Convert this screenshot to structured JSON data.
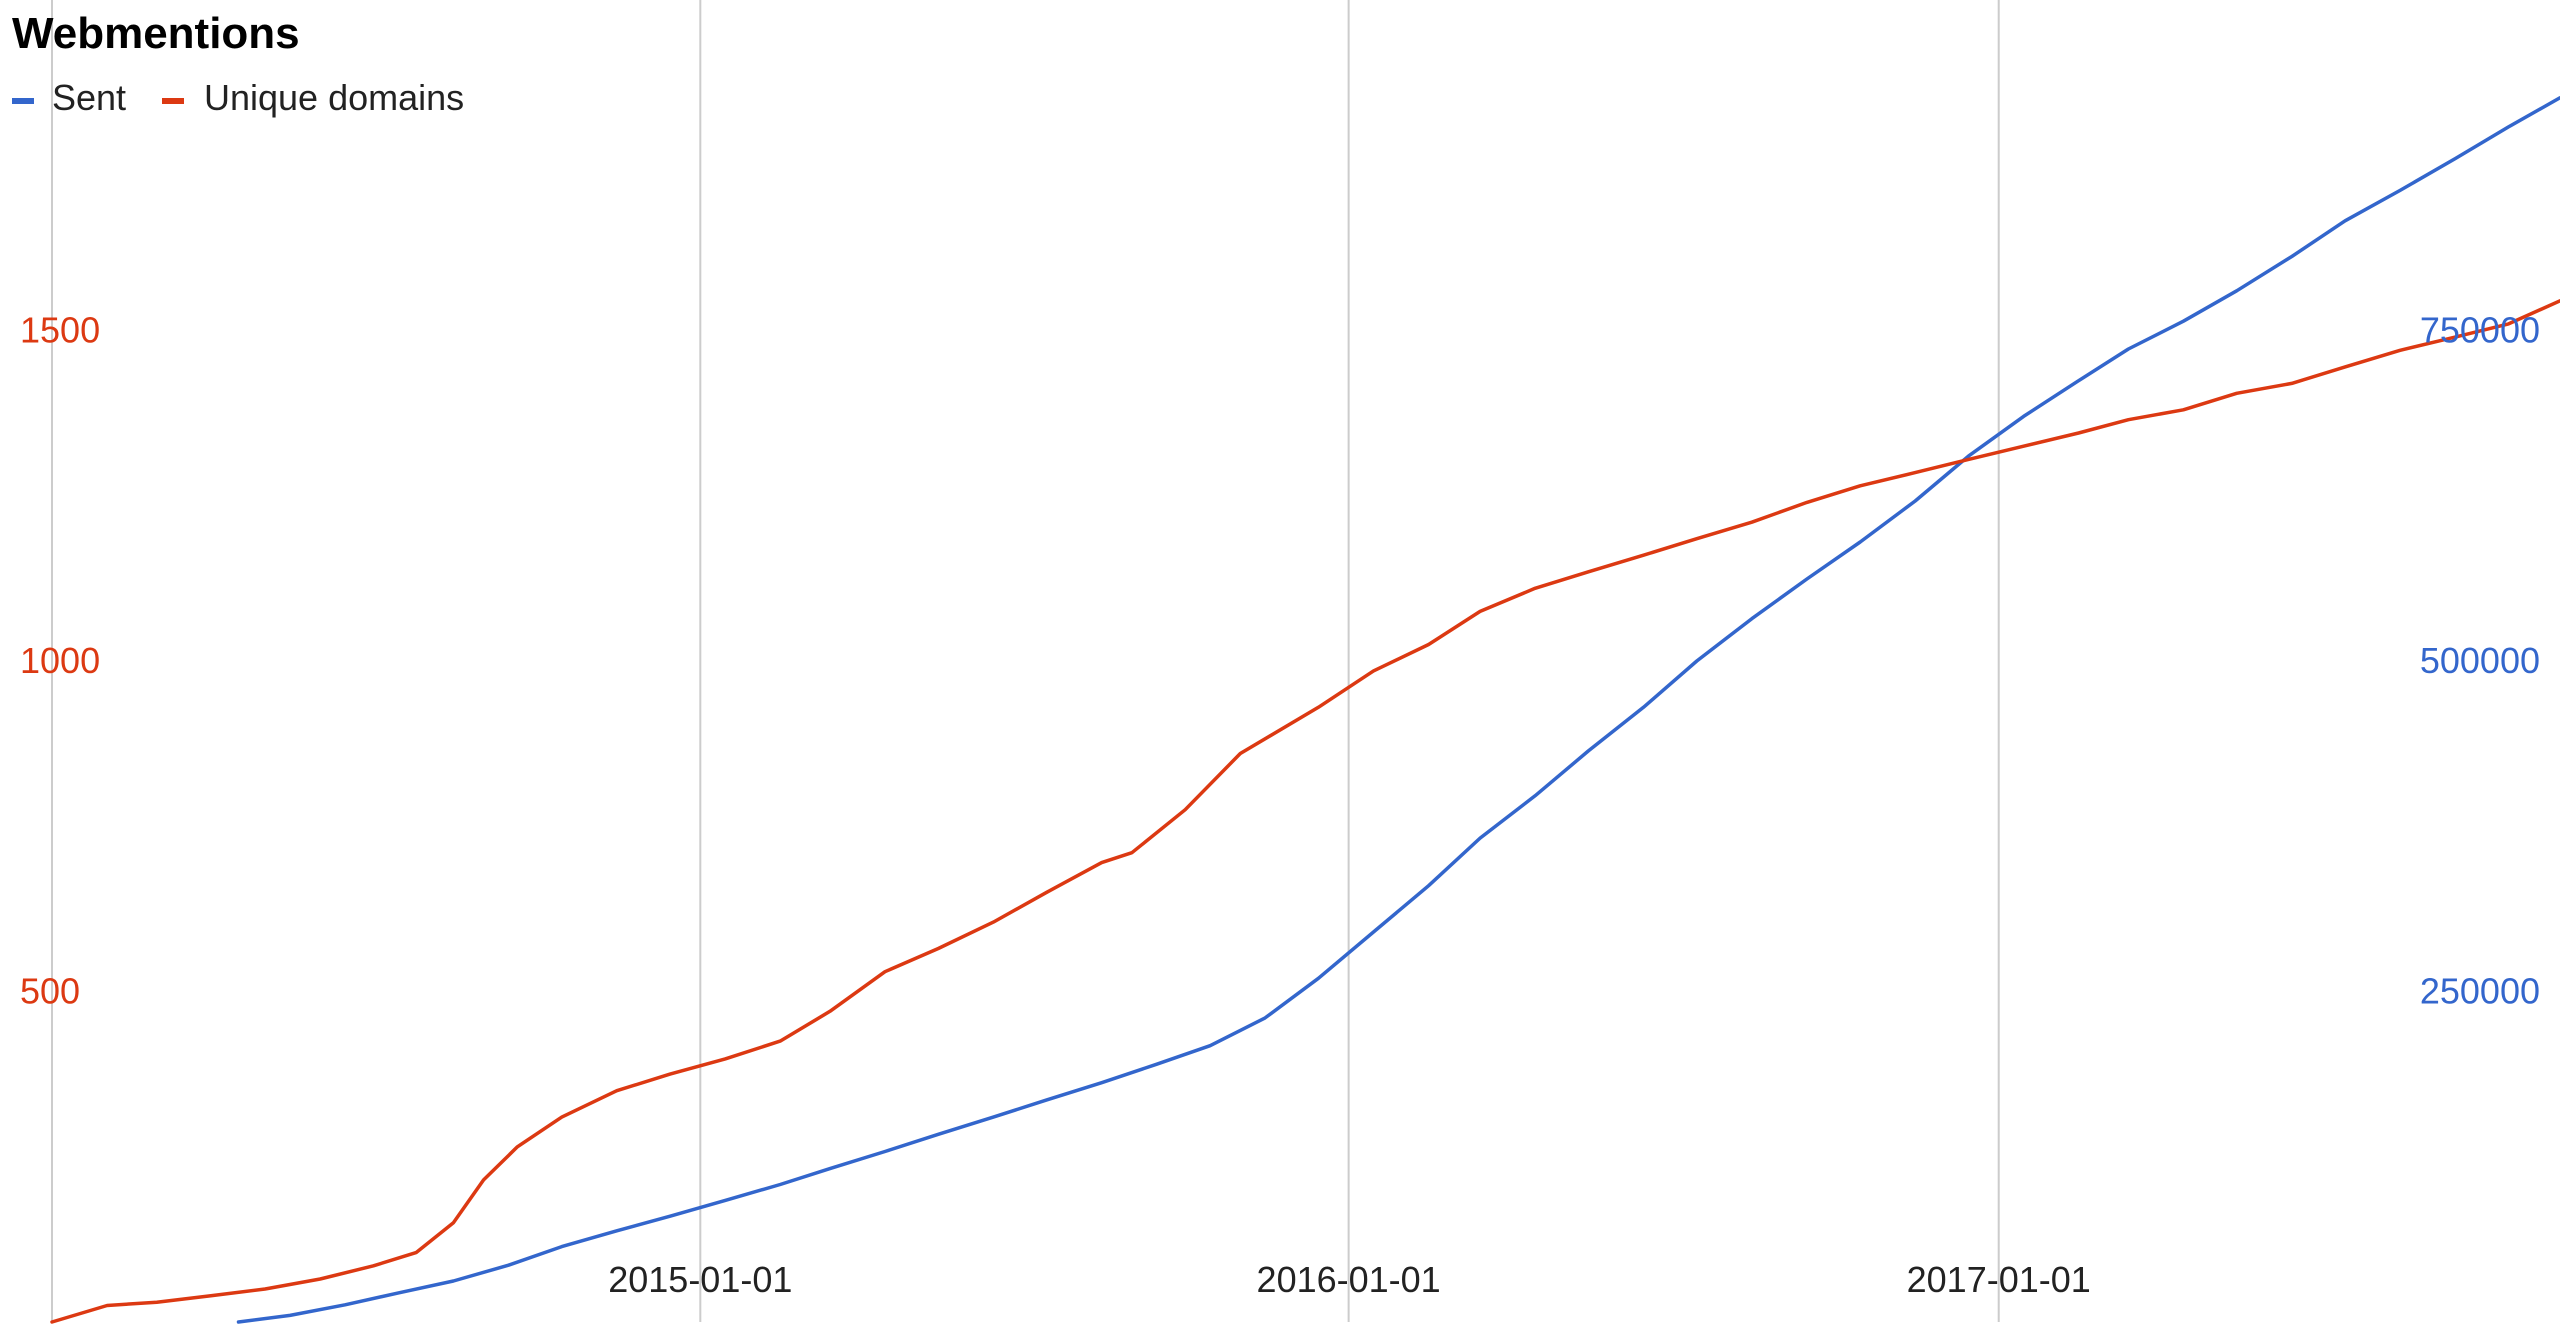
{
  "chart_data": {
    "type": "line",
    "title": "Webmentions",
    "legend": {
      "placement": "top-left"
    },
    "series": [
      {
        "name": "Sent",
        "axis": "right",
        "color": "#3366cc",
        "points": [
          [
            "2014-04-16",
            0
          ],
          [
            "2014-05-15",
            5000
          ],
          [
            "2014-06-15",
            13000
          ],
          [
            "2014-07-15",
            22000
          ],
          [
            "2014-08-15",
            31000
          ],
          [
            "2014-09-15",
            43000
          ],
          [
            "2014-10-15",
            57000
          ],
          [
            "2014-11-15",
            69000
          ],
          [
            "2014-12-15",
            80000
          ],
          [
            "2015-01-15",
            92000
          ],
          [
            "2015-02-15",
            104000
          ],
          [
            "2015-03-15",
            116000
          ],
          [
            "2015-04-15",
            129000
          ],
          [
            "2015-05-15",
            142000
          ],
          [
            "2015-06-15",
            155000
          ],
          [
            "2015-07-15",
            168000
          ],
          [
            "2015-08-15",
            181000
          ],
          [
            "2015-09-15",
            195000
          ],
          [
            "2015-10-15",
            209000
          ],
          [
            "2015-11-15",
            230000
          ],
          [
            "2015-12-15",
            260000
          ],
          [
            "2016-01-15",
            295000
          ],
          [
            "2016-02-15",
            330000
          ],
          [
            "2016-03-15",
            366000
          ],
          [
            "2016-04-15",
            398000
          ],
          [
            "2016-05-15",
            432000
          ],
          [
            "2016-06-15",
            465000
          ],
          [
            "2016-07-15",
            500000
          ],
          [
            "2016-08-15",
            532000
          ],
          [
            "2016-09-15",
            562000
          ],
          [
            "2016-10-15",
            590000
          ],
          [
            "2016-11-15",
            621000
          ],
          [
            "2016-12-15",
            655000
          ],
          [
            "2017-01-15",
            685000
          ],
          [
            "2017-02-15",
            712000
          ],
          [
            "2017-03-15",
            736000
          ],
          [
            "2017-04-15",
            757000
          ],
          [
            "2017-05-15",
            780000
          ],
          [
            "2017-06-15",
            806000
          ],
          [
            "2017-07-15",
            833000
          ],
          [
            "2017-08-15",
            856000
          ],
          [
            "2017-09-15",
            880000
          ],
          [
            "2017-10-15",
            904000
          ],
          [
            "2017-11-13",
            926000
          ]
        ]
      },
      {
        "name": "Unique domains",
        "axis": "left",
        "color": "#dc3912",
        "points": [
          [
            "2014-01-01",
            0
          ],
          [
            "2014-02-01",
            25
          ],
          [
            "2014-03-01",
            30
          ],
          [
            "2014-04-01",
            40
          ],
          [
            "2014-05-01",
            50
          ],
          [
            "2014-06-01",
            65
          ],
          [
            "2014-07-01",
            85
          ],
          [
            "2014-07-25",
            105
          ],
          [
            "2014-08-15",
            150
          ],
          [
            "2014-09-01",
            215
          ],
          [
            "2014-09-20",
            265
          ],
          [
            "2014-10-15",
            310
          ],
          [
            "2014-11-15",
            350
          ],
          [
            "2014-12-15",
            375
          ],
          [
            "2015-01-15",
            398
          ],
          [
            "2015-02-15",
            425
          ],
          [
            "2015-03-15",
            470
          ],
          [
            "2015-04-15",
            530
          ],
          [
            "2015-05-15",
            565
          ],
          [
            "2015-06-15",
            605
          ],
          [
            "2015-07-15",
            650
          ],
          [
            "2015-08-15",
            695
          ],
          [
            "2015-09-01",
            710
          ],
          [
            "2015-10-01",
            775
          ],
          [
            "2015-11-01",
            860
          ],
          [
            "2015-12-15",
            930
          ],
          [
            "2016-01-15",
            985
          ],
          [
            "2016-02-15",
            1025
          ],
          [
            "2016-03-15",
            1075
          ],
          [
            "2016-04-15",
            1110
          ],
          [
            "2016-05-15",
            1135
          ],
          [
            "2016-06-15",
            1160
          ],
          [
            "2016-07-15",
            1185
          ],
          [
            "2016-08-15",
            1210
          ],
          [
            "2016-09-15",
            1240
          ],
          [
            "2016-10-15",
            1265
          ],
          [
            "2016-11-15",
            1285
          ],
          [
            "2016-12-15",
            1305
          ],
          [
            "2017-01-15",
            1325
          ],
          [
            "2017-02-15",
            1345
          ],
          [
            "2017-03-15",
            1365
          ],
          [
            "2017-04-15",
            1380
          ],
          [
            "2017-05-15",
            1405
          ],
          [
            "2017-06-15",
            1420
          ],
          [
            "2017-07-15",
            1445
          ],
          [
            "2017-08-15",
            1470
          ],
          [
            "2017-09-15",
            1490
          ],
          [
            "2017-10-15",
            1510
          ],
          [
            "2017-11-13",
            1545
          ]
        ]
      }
    ],
    "x_axis": {
      "range": [
        "2014-01-01",
        "2017-11-13"
      ],
      "ticks": [
        "2015-01-01",
        "2016-01-01",
        "2017-01-01"
      ],
      "tick_labels": [
        "2015-01-01",
        "2016-01-01",
        "2017-01-01"
      ],
      "grid": true
    },
    "y_left": {
      "range": [
        0,
        2000
      ],
      "ticks": [
        500,
        1000,
        1500
      ],
      "tick_labels": [
        "500",
        "1000",
        "1500"
      ],
      "color": "#dc3912"
    },
    "y_right": {
      "range": [
        0,
        1000000
      ],
      "ticks": [
        250000,
        500000,
        750000
      ],
      "tick_labels": [
        "250000",
        "500000",
        "750000"
      ],
      "color": "#3366cc"
    }
  }
}
